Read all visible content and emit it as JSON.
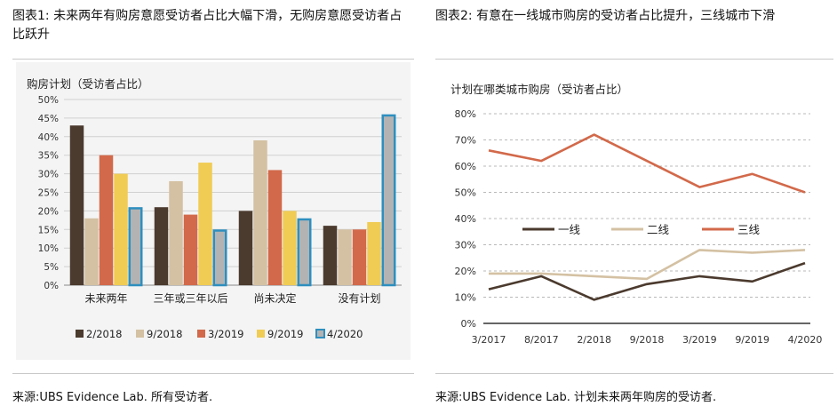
{
  "left": {
    "figure_title": "图表1: 未来两年有购房意愿受访者占比大幅下滑，无购房意愿受访者占比跃升",
    "source": "来源:UBS Evidence Lab. 所有受访者."
  },
  "right": {
    "figure_title": "图表2: 有意在一线城市购房的受访者占比提升，三线城市下滑",
    "source": "来源:UBS Evidence Lab. 计划未来两年购房的受访者."
  },
  "chart_data": [
    {
      "type": "bar",
      "title": "购房计划（受访者占比）",
      "categories": [
        "未来两年",
        "三年或三年以后",
        "尚未决定",
        "没有计划"
      ],
      "ylim": [
        0,
        50
      ],
      "yticks": [
        "0%",
        "5%",
        "10%",
        "15%",
        "20%",
        "25%",
        "30%",
        "35%",
        "40%",
        "45%",
        "50%"
      ],
      "series": [
        {
          "name": "2/2018",
          "color": "#4b3a2e",
          "values": [
            43,
            21,
            20,
            16
          ]
        },
        {
          "name": "9/2018",
          "color": "#d4c1a3",
          "values": [
            18,
            28,
            39,
            15
          ]
        },
        {
          "name": "3/2019",
          "color": "#d2694a",
          "values": [
            35,
            19,
            31,
            15
          ]
        },
        {
          "name": "9/2019",
          "color": "#f0cc55",
          "values": [
            30,
            33,
            20,
            17
          ]
        },
        {
          "name": "4/2020",
          "color": "#b3b3b3",
          "outline": "#2e8fbf",
          "values": [
            21,
            15,
            18,
            46
          ]
        }
      ],
      "legend": "bottom"
    },
    {
      "type": "line",
      "title": "计划在哪类城市购房（受访者占比）",
      "x": [
        "3/2017",
        "8/2017",
        "2/2018",
        "9/2018",
        "3/2019",
        "9/2019",
        "4/2020"
      ],
      "ylim": [
        0,
        80
      ],
      "yticks": [
        "0%",
        "10%",
        "20%",
        "30%",
        "40%",
        "50%",
        "60%",
        "70%",
        "80%"
      ],
      "series": [
        {
          "name": "一线",
          "color": "#4b3a2e",
          "values": [
            13,
            18,
            9,
            15,
            18,
            16,
            23
          ]
        },
        {
          "name": "二线",
          "color": "#d4c1a3",
          "values": [
            19,
            19,
            18,
            17,
            28,
            27,
            28
          ]
        },
        {
          "name": "三线",
          "color": "#d2694a",
          "values": [
            66,
            62,
            72,
            62,
            52,
            57,
            50
          ]
        }
      ],
      "legend": "middle"
    }
  ]
}
